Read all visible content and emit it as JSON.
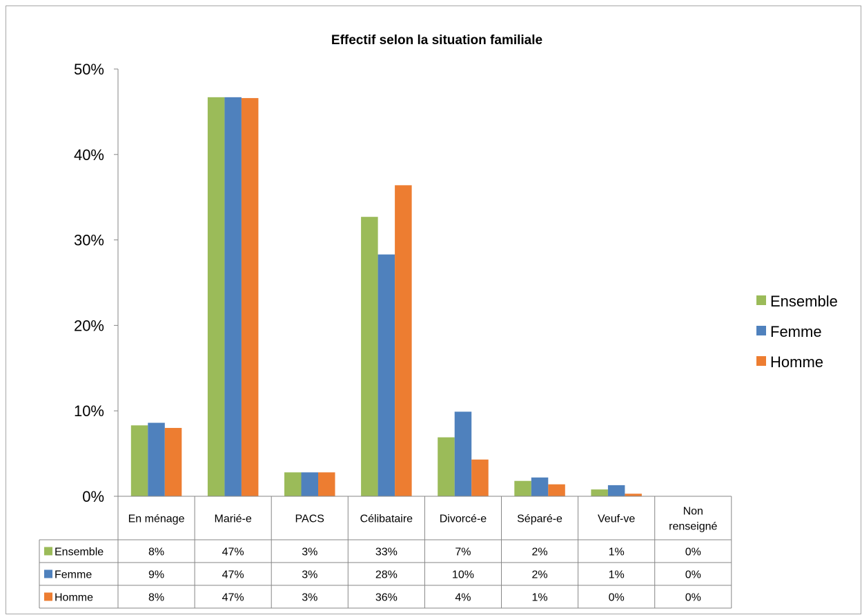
{
  "colors": {
    "Ensemble": "#9bbb59",
    "Femme": "#4f81bd",
    "Homme": "#ed7d31"
  },
  "chart_data": {
    "type": "bar",
    "title": "Effectif selon la situation familiale",
    "xlabel": "",
    "ylabel": "",
    "ylim": [
      0,
      50
    ],
    "yticks": [
      "0%",
      "10%",
      "20%",
      "30%",
      "40%",
      "50%"
    ],
    "yticks_values": [
      0,
      10,
      20,
      30,
      40,
      50
    ],
    "legend_position": "right",
    "grid": false,
    "categories": [
      "En ménage",
      "Marié-e",
      "PACS",
      "Célibataire",
      "Divorcé-e",
      "Séparé-e",
      "Veuf-ve",
      "Non renseigné"
    ],
    "category_lines": [
      [
        "En ménage"
      ],
      [
        "Marié-e"
      ],
      [
        "PACS"
      ],
      [
        "Célibataire"
      ],
      [
        "Divorcé-e"
      ],
      [
        "Séparé-e"
      ],
      [
        "Veuf-ve"
      ],
      [
        "Non",
        "renseigné"
      ]
    ],
    "series": [
      {
        "name": "Ensemble",
        "values": [
          8.3,
          46.7,
          2.8,
          32.7,
          6.9,
          1.8,
          0.8,
          0
        ],
        "labels": [
          "8%",
          "47%",
          "3%",
          "33%",
          "7%",
          "2%",
          "1%",
          "0%"
        ]
      },
      {
        "name": "Femme",
        "values": [
          8.6,
          46.7,
          2.8,
          28.3,
          9.9,
          2.2,
          1.3,
          0
        ],
        "labels": [
          "9%",
          "47%",
          "3%",
          "28%",
          "10%",
          "2%",
          "1%",
          "0%"
        ]
      },
      {
        "name": "Homme",
        "values": [
          8.0,
          46.6,
          2.8,
          36.4,
          4.3,
          1.4,
          0.3,
          0
        ],
        "labels": [
          "8%",
          "47%",
          "3%",
          "36%",
          "4%",
          "1%",
          "0%",
          "0%"
        ]
      }
    ]
  }
}
